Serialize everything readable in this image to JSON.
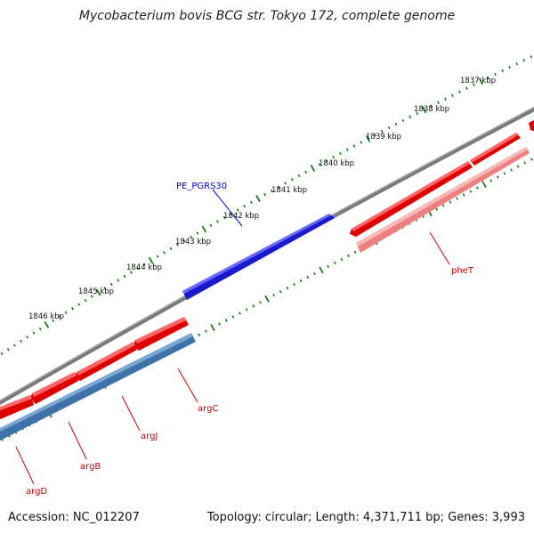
{
  "title": "Mycobacterium bovis BCG str. Tokyo 172, complete genome",
  "footer": {
    "accession": "Accession: NC_012207",
    "summary": "Topology: circular; Length: 4,371,711 bp; Genes: 3,993"
  },
  "colors": {
    "backbone": "#808080",
    "tick": "#1a7a1a",
    "gene_red": "#ee1111",
    "gene_pink": "#ee8888",
    "gene_blue": "#3355dd",
    "gene_steel": "#4a7fb5",
    "label_red": "#cc0000",
    "label_blue": "#0000cc"
  },
  "scale": {
    "unit": "kbp",
    "labels": [
      "1837 kbp",
      "1838 kbp",
      "1839 kbp",
      "1840 kbp",
      "1841 kbp",
      "1842 kbp",
      "1843 kbp",
      "1844 kbp",
      "1845 kbp",
      "1846 kbp"
    ]
  },
  "genes": [
    {
      "name": "pheT",
      "strand": "reverse"
    },
    {
      "name": "PE_PGRS30",
      "strand": "forward"
    },
    {
      "name": "argC",
      "strand": "reverse"
    },
    {
      "name": "argJ",
      "strand": "reverse"
    },
    {
      "name": "argB",
      "strand": "reverse"
    },
    {
      "name": "argD",
      "strand": "reverse"
    }
  ]
}
